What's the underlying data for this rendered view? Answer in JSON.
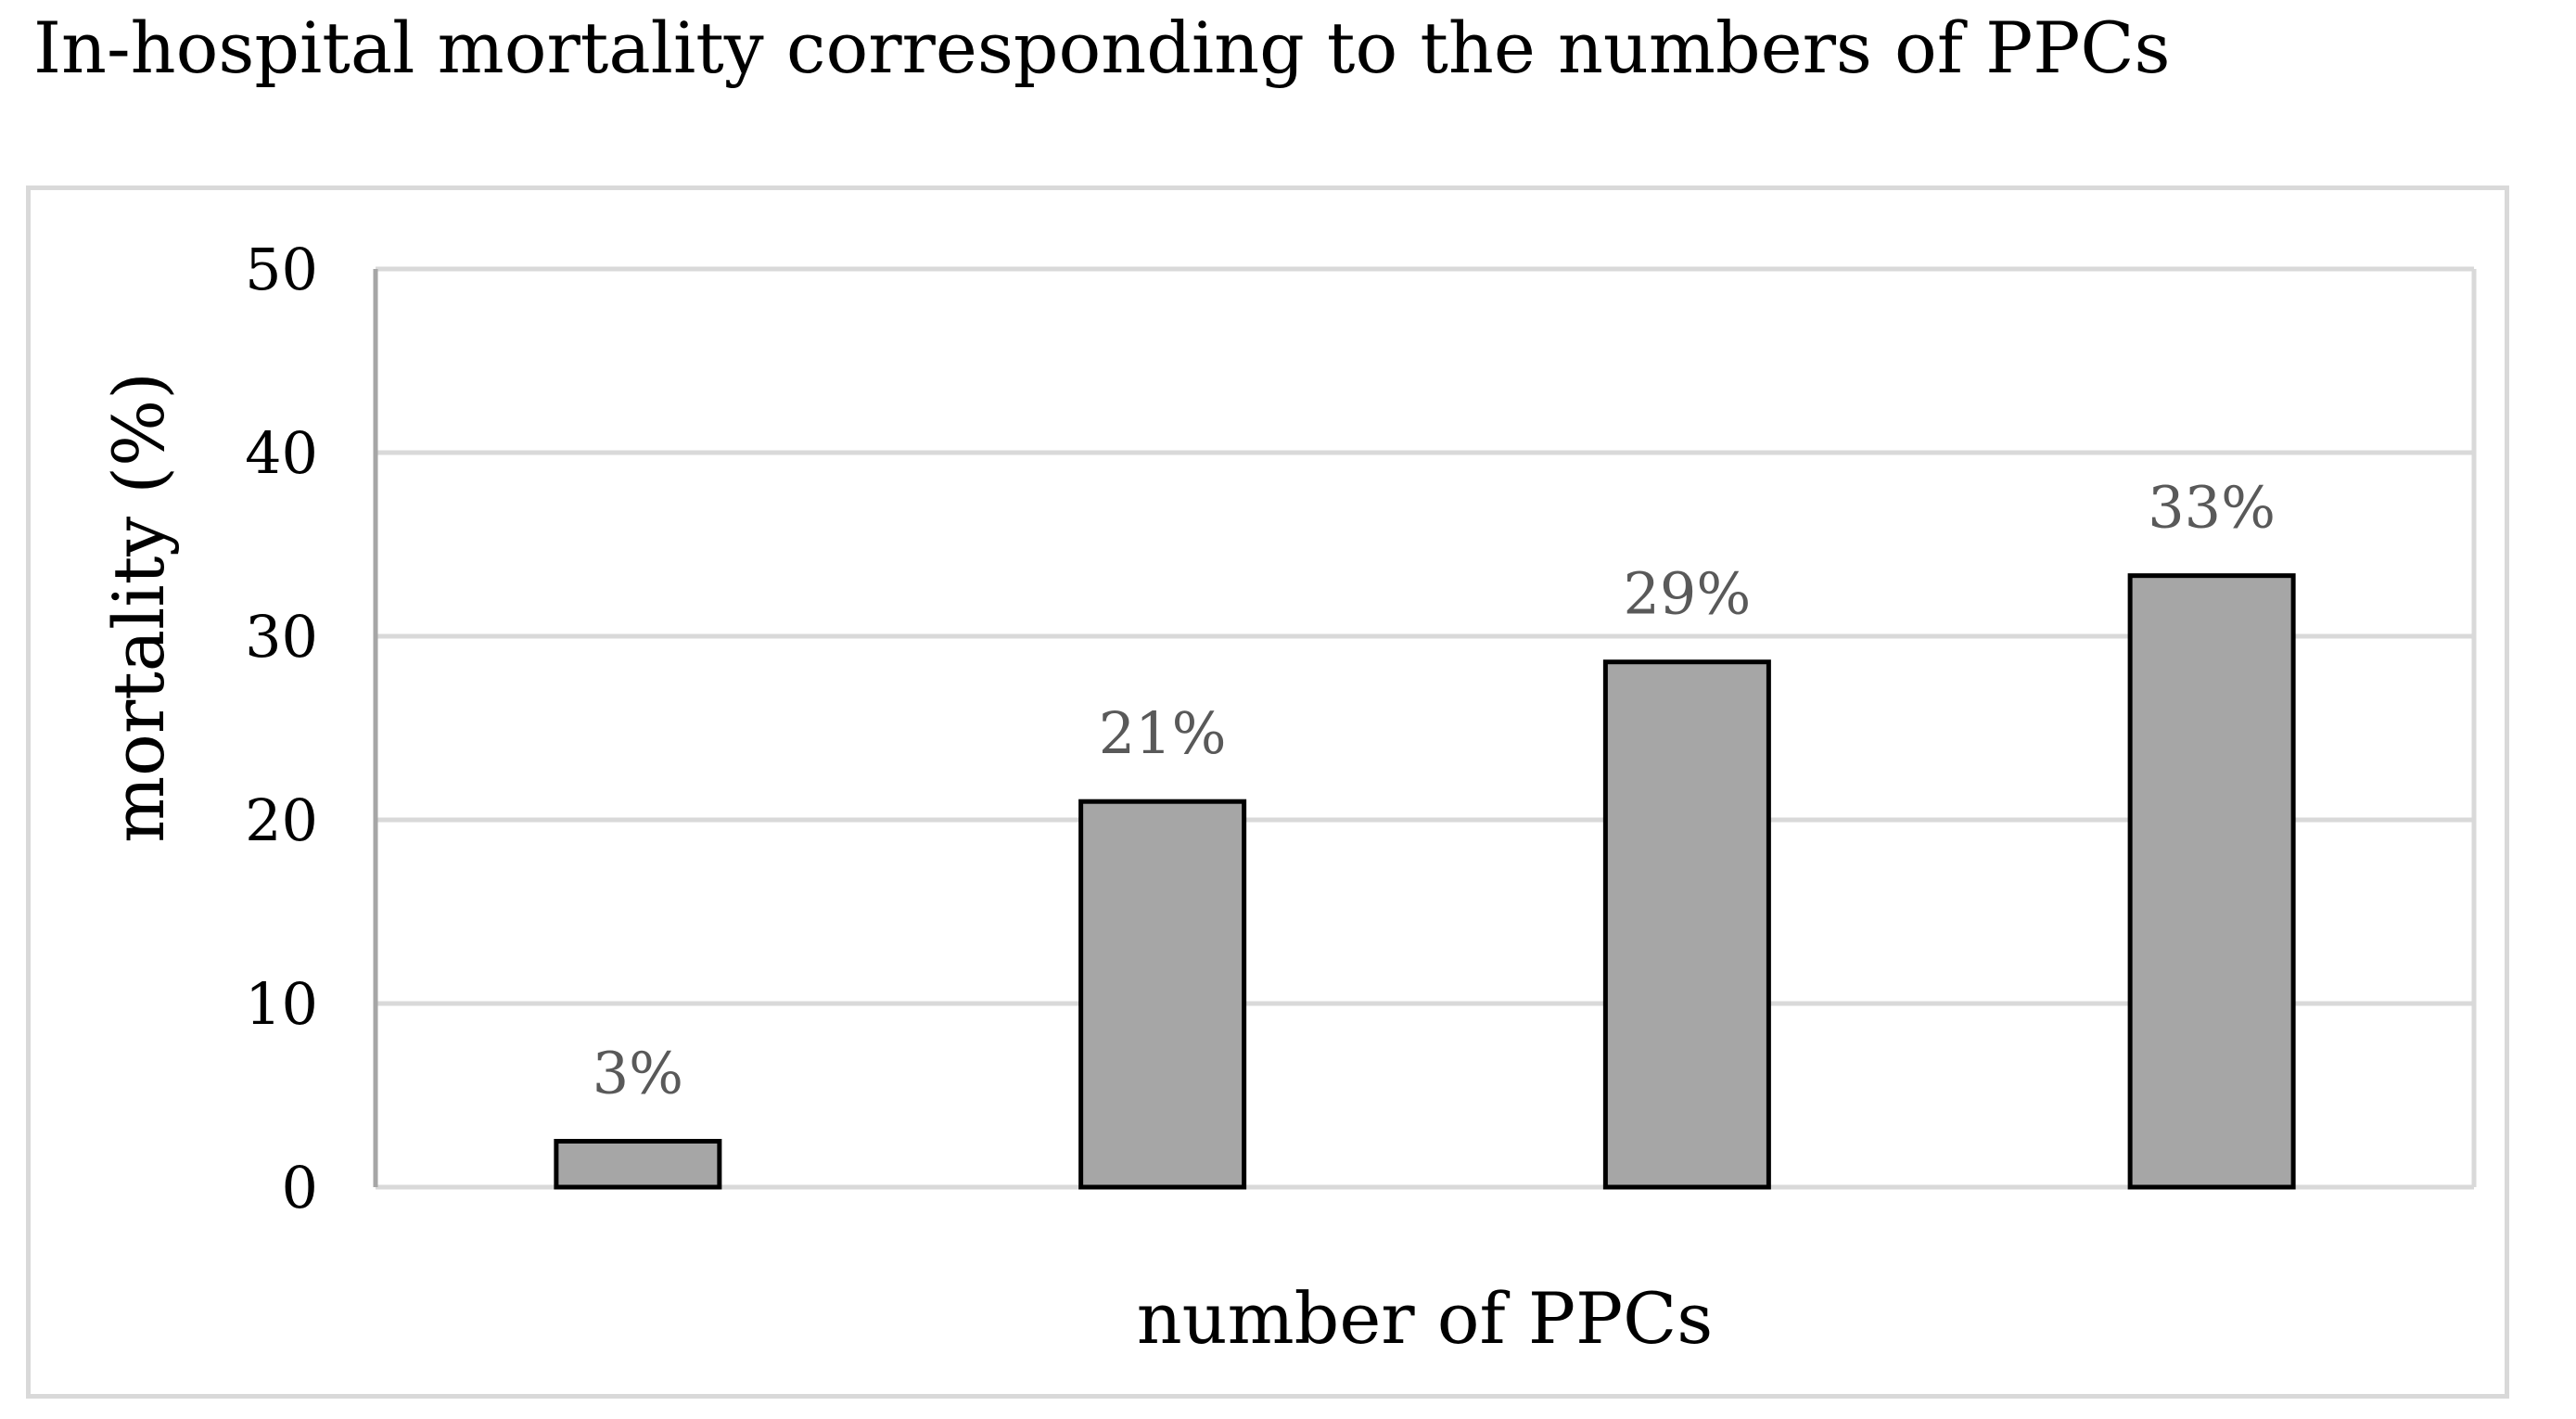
{
  "chart_data": {
    "type": "bar",
    "title": "In-hospital mortality corresponding to the numbers of PPCs",
    "xlabel": "number of PPCs",
    "ylabel": "mortality (%)",
    "categories": [
      "",
      "",
      "",
      ""
    ],
    "values": [
      2.5,
      21,
      28.6,
      33.3
    ],
    "data_labels": [
      "3%",
      "21%",
      "29%",
      "33%"
    ],
    "ylim": [
      0,
      50
    ],
    "yticks": [
      "0",
      "10",
      "20",
      "30",
      "40",
      "50"
    ],
    "grid": true,
    "legend": "none",
    "colors": {
      "bar_fill": "#a6a6a6",
      "bar_stroke": "#000000",
      "grid": "#d9d9d9",
      "axis_text": "#000000",
      "data_label_text": "#595959"
    }
  }
}
